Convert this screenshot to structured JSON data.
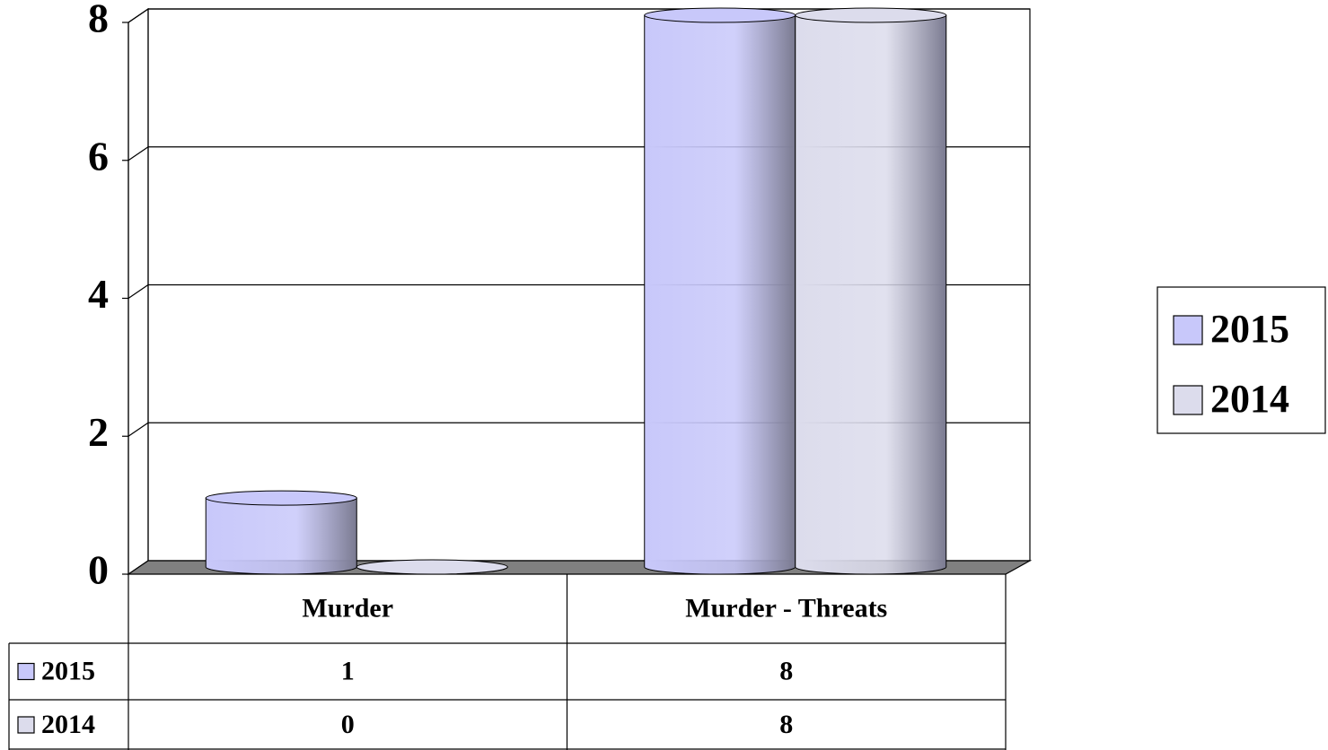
{
  "chart_data": {
    "type": "bar",
    "categories": [
      "Murder",
      "Murder - Threats"
    ],
    "series": [
      {
        "name": "2015",
        "color": "#c8c8fa",
        "values": [
          1,
          8
        ]
      },
      {
        "name": "2014",
        "color": "#dcdcec",
        "values": [
          0,
          8
        ]
      }
    ],
    "ylim": [
      0,
      8
    ],
    "yticks": [
      0,
      2,
      4,
      6,
      8
    ],
    "grid": true,
    "legend": "right"
  }
}
